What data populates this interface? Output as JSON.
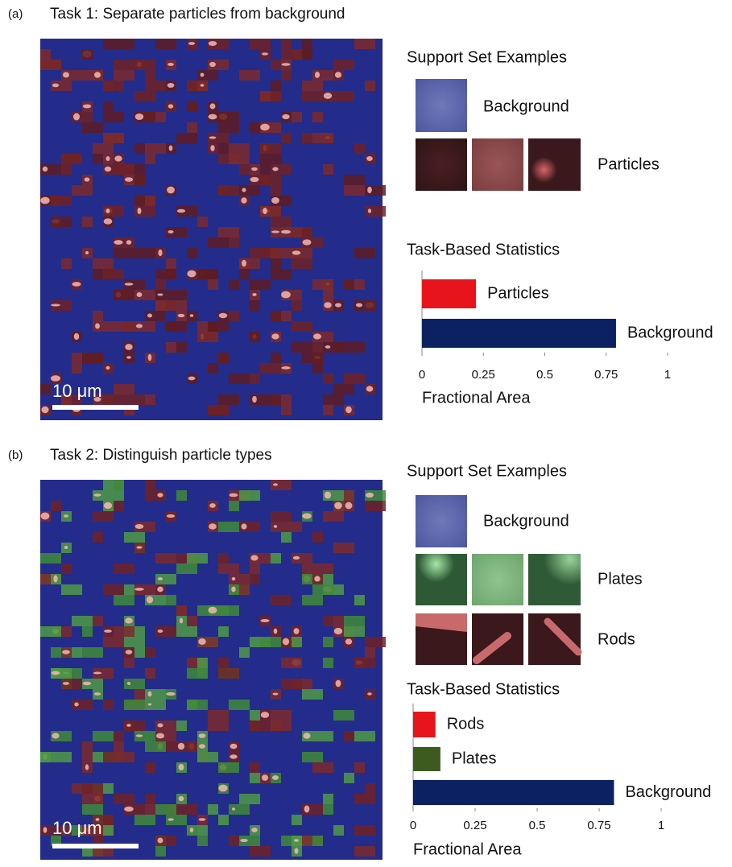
{
  "panels": [
    {
      "label": "(a)",
      "title": "Task 1: Separate particles from background",
      "scale_bar": "10 μm",
      "support_title": "Support Set Examples",
      "support_labels": [
        "Background",
        "Particles"
      ]
    },
    {
      "label": "(b)",
      "title": "Task 2: Distinguish particle types",
      "scale_bar": "10 μm",
      "support_title": "Support Set Examples",
      "support_labels": [
        "Background",
        "Plates",
        "Rods"
      ]
    }
  ],
  "chart_data": [
    {
      "type": "hbar",
      "title": "Task-Based Statistics",
      "x_label": "Fractional Area",
      "categories": [
        "Particles",
        "Background"
      ],
      "values": [
        0.22,
        0.79
      ],
      "colors": [
        "#e8141b",
        "#0c2161"
      ],
      "xlim": [
        0,
        1
      ],
      "xticks": [
        0,
        0.25,
        0.5,
        0.75,
        1
      ]
    },
    {
      "type": "hbar",
      "title": "Task-Based Statistics",
      "x_label": "Fractional Area",
      "categories": [
        "Rods",
        "Plates",
        "Background"
      ],
      "values": [
        0.09,
        0.11,
        0.81
      ],
      "colors": [
        "#e8141b",
        "#3d5a1f",
        "#0c2161"
      ],
      "xlim": [
        0,
        1
      ],
      "xticks": [
        0,
        0.25,
        0.5,
        0.75,
        1
      ]
    }
  ]
}
